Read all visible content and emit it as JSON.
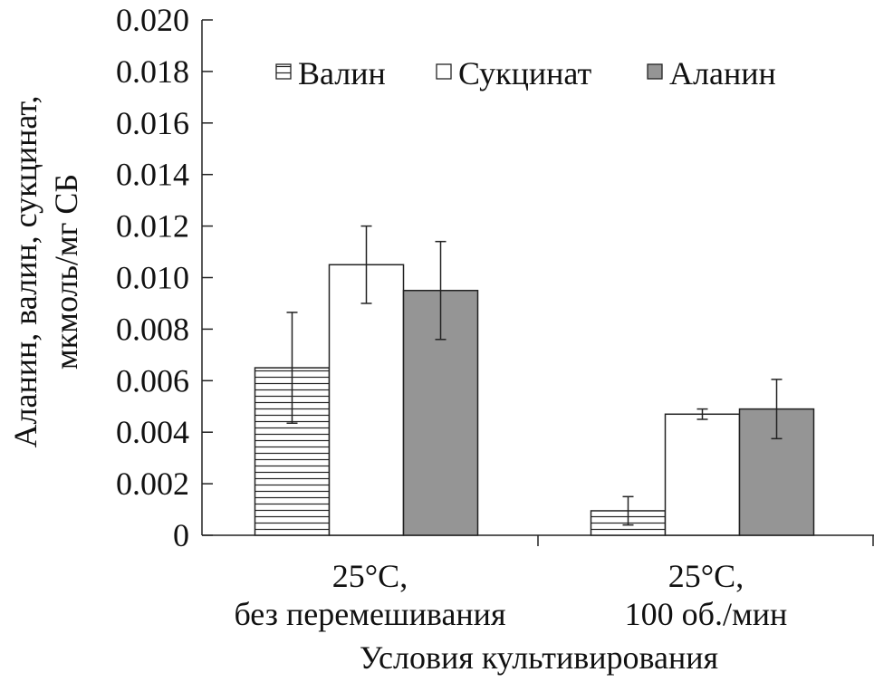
{
  "chart_data": {
    "type": "bar",
    "title": "",
    "ylabel_lines": [
      "Аланин, валин, сукцинат,",
      "мкмоль/мг СБ"
    ],
    "xlabel": "Условия культивирования",
    "ylim": [
      0,
      0.02
    ],
    "yticks": [
      "0",
      "0.002",
      "0.004",
      "0.006",
      "0.008",
      "0.010",
      "0.012",
      "0.014",
      "0.016",
      "0.018",
      "0.020"
    ],
    "categories": [
      [
        "25°C,",
        "без перемешивания"
      ],
      [
        "25°C,",
        "100 об./мин"
      ]
    ],
    "series": [
      {
        "name": "Валин",
        "pattern": "hatch",
        "fill": "#ffffff",
        "values": [
          0.0065,
          0.00095
        ],
        "errors": [
          0.00215,
          0.00055
        ]
      },
      {
        "name": "Сукцинат",
        "pattern": "none",
        "fill": "#ffffff",
        "values": [
          0.0105,
          0.0047
        ],
        "errors": [
          0.0015,
          0.0002
        ]
      },
      {
        "name": "Аланин",
        "pattern": "none",
        "fill": "#959595",
        "values": [
          0.0095,
          0.0049
        ],
        "errors": [
          0.0019,
          0.00115
        ]
      }
    ],
    "legend_position": "top-right",
    "grid": false
  }
}
